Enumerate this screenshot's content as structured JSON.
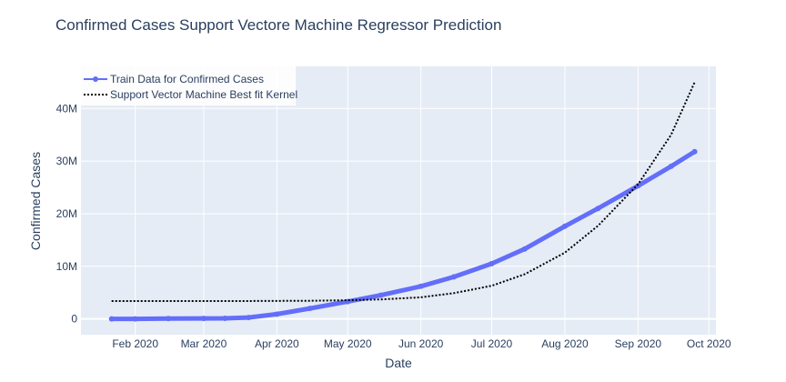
{
  "chart_data": {
    "type": "line",
    "title": "Confirmed Cases Support Vectore Machine Regressor Prediction",
    "xlabel": "Date",
    "ylabel": "Confirmed Cases",
    "x_range": [
      "2020-01-09",
      "2020-10-04"
    ],
    "ylim": [
      -3000000,
      48000000
    ],
    "x_tick_labels": [
      {
        "date": "2020-02-01",
        "label": "Feb 2020"
      },
      {
        "date": "2020-03-01",
        "label": "Mar 2020"
      },
      {
        "date": "2020-04-01",
        "label": "Apr 2020"
      },
      {
        "date": "2020-05-01",
        "label": "May 2020"
      },
      {
        "date": "2020-06-01",
        "label": "Jun 2020"
      },
      {
        "date": "2020-07-01",
        "label": "Jul 2020"
      },
      {
        "date": "2020-08-01",
        "label": "Aug 2020"
      },
      {
        "date": "2020-09-01",
        "label": "Sep 2020"
      },
      {
        "date": "2020-10-01",
        "label": "Oct 2020"
      }
    ],
    "y_tick_labels": [
      {
        "value": 0,
        "label": "0"
      },
      {
        "value": 10000000,
        "label": "10M"
      },
      {
        "value": 20000000,
        "label": "20M"
      },
      {
        "value": 30000000,
        "label": "30M"
      },
      {
        "value": 40000000,
        "label": "40M"
      }
    ],
    "grid": true,
    "legend_position": "top-left",
    "series": [
      {
        "name": "Train Data for Confirmed Cases",
        "color": "#636efa",
        "style": "lines+markers",
        "points": [
          [
            "2020-01-22",
            0
          ],
          [
            "2020-02-01",
            12000
          ],
          [
            "2020-02-15",
            70000
          ],
          [
            "2020-03-01",
            90000
          ],
          [
            "2020-03-10",
            120000
          ],
          [
            "2020-03-20",
            270000
          ],
          [
            "2020-04-01",
            900000
          ],
          [
            "2020-04-15",
            2000000
          ],
          [
            "2020-05-01",
            3300000
          ],
          [
            "2020-05-15",
            4500000
          ],
          [
            "2020-06-01",
            6200000
          ],
          [
            "2020-06-15",
            8000000
          ],
          [
            "2020-07-01",
            10500000
          ],
          [
            "2020-07-15",
            13300000
          ],
          [
            "2020-08-01",
            17600000
          ],
          [
            "2020-08-15",
            21000000
          ],
          [
            "2020-09-01",
            25300000
          ],
          [
            "2020-09-15",
            29000000
          ],
          [
            "2020-09-25",
            31800000
          ]
        ]
      },
      {
        "name": "Support Vector Machine Best fit Kernel",
        "color": "#000000",
        "style": "dotted",
        "points": [
          [
            "2020-01-22",
            3400000
          ],
          [
            "2020-02-15",
            3400000
          ],
          [
            "2020-03-15",
            3400000
          ],
          [
            "2020-04-15",
            3450000
          ],
          [
            "2020-05-01",
            3550000
          ],
          [
            "2020-05-15",
            3700000
          ],
          [
            "2020-06-01",
            4100000
          ],
          [
            "2020-06-15",
            4900000
          ],
          [
            "2020-07-01",
            6300000
          ],
          [
            "2020-07-15",
            8500000
          ],
          [
            "2020-08-01",
            12600000
          ],
          [
            "2020-08-15",
            17700000
          ],
          [
            "2020-09-01",
            25600000
          ],
          [
            "2020-09-15",
            35000000
          ],
          [
            "2020-09-25",
            45000000
          ]
        ]
      }
    ]
  }
}
